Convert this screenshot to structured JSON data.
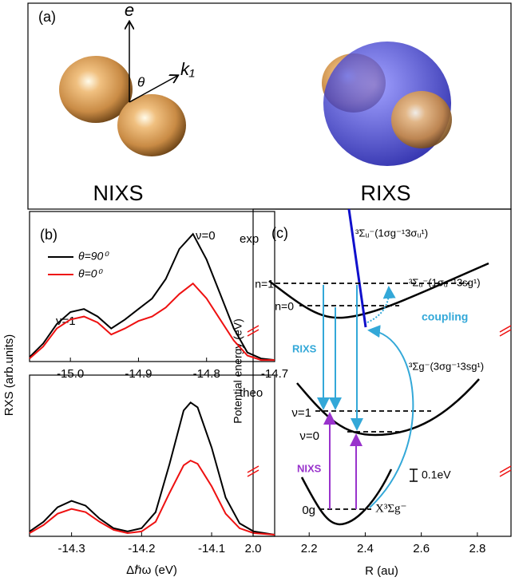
{
  "panel_a": {
    "label": "(a)",
    "e": "e",
    "k": "k₁",
    "theta": "θ",
    "nixs": "NIXS",
    "rixs": "RIXS"
  },
  "chart_data": [
    {
      "type": "line",
      "panel_label": "(b)",
      "label": "exp",
      "annotations": [
        "ν=1",
        "ν=0"
      ],
      "ylabel": "RXS (arb.units)",
      "x": [
        -15.06,
        -15.04,
        -15.02,
        -15.0,
        -14.98,
        -14.96,
        -14.94,
        -14.92,
        -14.9,
        -14.88,
        -14.86,
        -14.84,
        -14.82,
        -14.8,
        -14.78,
        -14.76,
        -14.74,
        -14.72,
        -14.7
      ],
      "series": [
        {
          "name": "θ=90⁰",
          "color": "#000000",
          "values": [
            0.03,
            0.12,
            0.25,
            0.33,
            0.35,
            0.3,
            0.22,
            0.28,
            0.35,
            0.42,
            0.55,
            0.75,
            0.85,
            0.68,
            0.45,
            0.22,
            0.06,
            0.02,
            0.01
          ]
        },
        {
          "name": "θ=0⁰",
          "color": "#ee1111",
          "values": [
            0.02,
            0.1,
            0.22,
            0.28,
            0.3,
            0.26,
            0.18,
            0.22,
            0.27,
            0.3,
            0.36,
            0.45,
            0.52,
            0.42,
            0.28,
            0.14,
            0.04,
            0.01,
            0.01
          ]
        }
      ],
      "xlim": [
        -15.06,
        -14.7
      ],
      "xticks": [
        {
          "value": -15,
          "label": "-15.0"
        },
        -14.9,
        -14.8,
        -14.7
      ],
      "ylim": [
        0,
        1
      ]
    },
    {
      "type": "line",
      "label": "theo",
      "xlabel": "Δℏω (eV)",
      "x": [
        -14.36,
        -14.34,
        -14.32,
        -14.3,
        -14.28,
        -14.26,
        -14.24,
        -14.22,
        -14.2,
        -14.18,
        -14.16,
        -14.14,
        -14.13,
        -14.12,
        -14.1,
        -14.08,
        -14.06,
        -14.04,
        -14.01
      ],
      "series": [
        {
          "color": "#000000",
          "values": [
            0.03,
            0.09,
            0.18,
            0.22,
            0.19,
            0.11,
            0.05,
            0.03,
            0.05,
            0.15,
            0.45,
            0.78,
            0.83,
            0.8,
            0.55,
            0.24,
            0.08,
            0.03,
            0.01
          ]
        },
        {
          "color": "#ee1111",
          "values": [
            0.02,
            0.07,
            0.14,
            0.17,
            0.15,
            0.09,
            0.04,
            0.02,
            0.03,
            0.09,
            0.27,
            0.44,
            0.47,
            0.45,
            0.31,
            0.14,
            0.05,
            0.02,
            0.01
          ]
        }
      ],
      "xlim": [
        -14.36,
        -14.01
      ],
      "xticks": [
        -14.3,
        -14.2,
        -14.1
      ],
      "ylim": [
        0,
        1
      ]
    },
    {
      "type": "diagram",
      "panel_label": "(c)",
      "xlabel": "R (au)",
      "ylabel": "Potential energy (eV)",
      "xlim": [
        2.0,
        2.92
      ],
      "xticks": [
        {
          "value": 2,
          "label": "2.0"
        },
        2.2,
        2.4,
        2.6,
        2.8
      ],
      "annotations": [
        "³Σᵤ⁻(1σg⁻¹3σᵤ¹)",
        "³Σᵤ⁻(1σᵤ⁻¹3sg¹)",
        "³Σg⁻(3σg⁻¹3sg¹)",
        "n=1",
        "n=0",
        "coupling",
        "RIXS",
        "ν=1",
        "ν=0",
        "NIXS",
        "0.1eV",
        "0g",
        "X³Σg⁻"
      ]
    }
  ]
}
